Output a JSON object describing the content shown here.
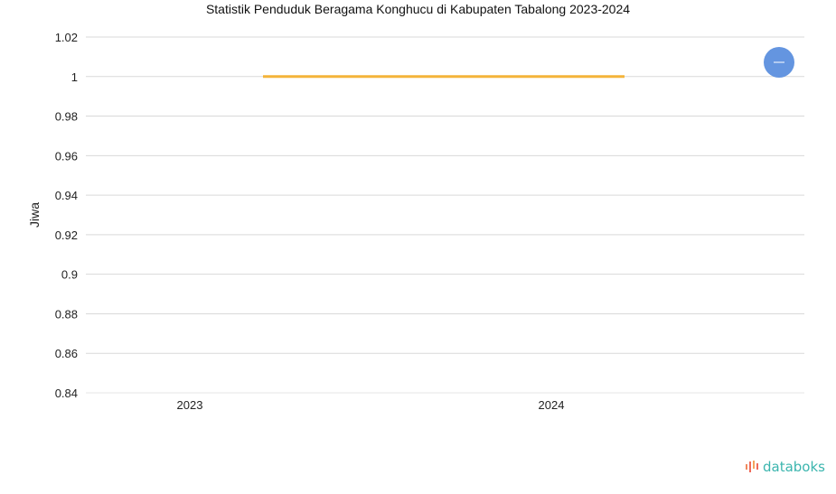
{
  "chart_data": {
    "type": "line",
    "title": "Statistik Penduduk Beragama Konghucu di Kabupaten Tabalong 2023-2024",
    "xlabel": "",
    "ylabel": "Jiwa",
    "categories": [
      "2023",
      "2024"
    ],
    "series": [
      {
        "values": [
          1,
          1
        ],
        "color": "#f4b43a"
      }
    ],
    "ylim": [
      0.84,
      1.02
    ],
    "yticks": [
      "0.84",
      "0.86",
      "0.88",
      "0.9",
      "0.92",
      "0.94",
      "0.96",
      "0.98",
      "1",
      "1.02"
    ],
    "grid": true,
    "legend_button": {
      "icon": "minus-icon",
      "color": "#6495e0"
    }
  },
  "branding": {
    "logo_text": "databoks"
  }
}
